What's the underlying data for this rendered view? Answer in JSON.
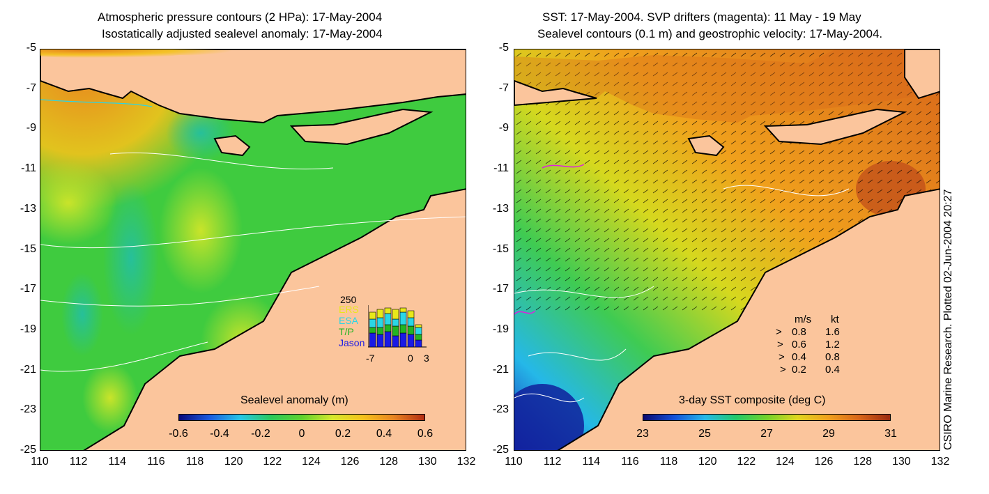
{
  "left_panel": {
    "title_line1": "Atmospheric pressure contours (2 HPa): 17-May-2004",
    "title_line2": "Isostatically adjusted sealevel anomaly: 17-May-2004",
    "colorbar_label": "Sealevel anomaly (m)",
    "colorbar_ticks": [
      "-0.6",
      "-0.4",
      "-0.2",
      "0",
      "0.2",
      "0.4",
      "0.6"
    ],
    "colormap": [
      "#08087a",
      "#1a5be0",
      "#26c6e6",
      "#2bc85a",
      "#5fd12f",
      "#d6e82c",
      "#f5c21c",
      "#e88421",
      "#b32d12"
    ],
    "inset": {
      "ymax_label": "250",
      "xticks": [
        "-7",
        "0",
        "3"
      ],
      "series": [
        {
          "name": "ERS",
          "color": "#e8e81a"
        },
        {
          "name": "ESA",
          "color": "#2ad6e6"
        },
        {
          "name": "T/P",
          "color": "#22b422"
        },
        {
          "name": "Jason",
          "color": "#1a1ae6"
        }
      ]
    }
  },
  "right_panel": {
    "title_line1": "SST: 17-May-2004. SVP drifters (magenta): 11 May - 19 May",
    "title_line2": "Sealevel contours (0.1 m) and geostrophic velocity: 17-May-2004.",
    "colorbar_label": "3-day SST composite (deg C)",
    "colorbar_ticks": [
      "23",
      "25",
      "27",
      "29",
      "31"
    ],
    "colormap": [
      "#0a0a70",
      "#1450d8",
      "#25b8e8",
      "#22c86a",
      "#73d22a",
      "#e0d61e",
      "#f0a01c",
      "#d8661a",
      "#9c2a10"
    ],
    "velocity_legend": {
      "header_ms": "m/s",
      "header_kt": "kt",
      "rows": [
        {
          "ms": "0.8",
          "kt": "1.6"
        },
        {
          "ms": "0.6",
          "kt": "1.2"
        },
        {
          "ms": "0.4",
          "kt": "0.8"
        },
        {
          "ms": "0.2",
          "kt": "0.4"
        }
      ]
    },
    "credit": "CSIRO Marine Research. Plotted 02-Jun-2004 20:27"
  },
  "axes": {
    "yticks": [
      "-5",
      "-7",
      "-9",
      "-11",
      "-13",
      "-15",
      "-17",
      "-19",
      "-21",
      "-23",
      "-25"
    ],
    "xticks": [
      "110",
      "112",
      "114",
      "116",
      "118",
      "120",
      "122",
      "124",
      "126",
      "128",
      "130",
      "132"
    ]
  },
  "colors": {
    "land": "#fbc59c",
    "coastline": "#000000"
  }
}
